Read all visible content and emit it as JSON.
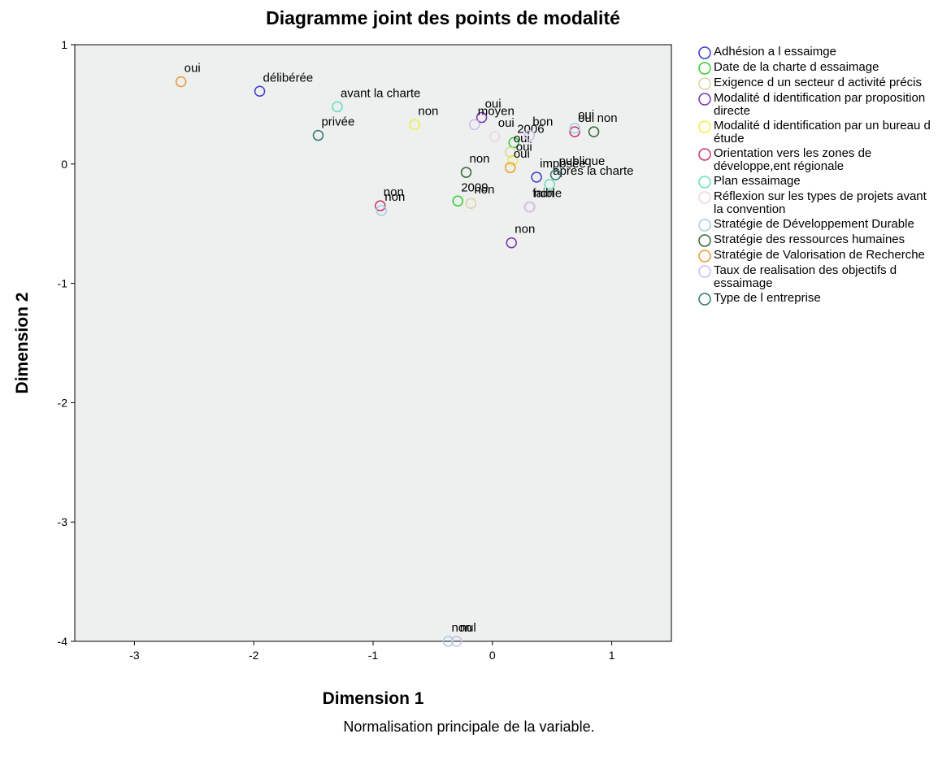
{
  "chart_data": {
    "type": "scatter",
    "title": "Diagramme joint des points de modalité",
    "xlabel": "Dimension 1",
    "ylabel": "Dimension 2",
    "note": "Normalisation principale de la variable.",
    "xlim": [
      -3.5,
      1.5
    ],
    "ylim": [
      -4,
      1
    ],
    "xticks": [
      -3,
      -2,
      -1,
      0,
      1
    ],
    "yticks": [
      1,
      0,
      -1,
      -2,
      -3,
      -4
    ],
    "series": [
      {
        "name": "Adhésion a l essaimge",
        "color": "#3a3acc",
        "x": [
          -1.95,
          0.37
        ],
        "values": [
          0.61,
          -0.11
        ],
        "labels": [
          "délibérée",
          "imposée"
        ]
      },
      {
        "name": "Date de la charte d essaimage",
        "color": "#33cc33",
        "x": [
          0.18,
          -0.29
        ],
        "values": [
          0.18,
          -0.31
        ],
        "labels": [
          "2006",
          "2009"
        ]
      },
      {
        "name": "Exigence d un secteur d activité précis",
        "color": "#ddd4a0",
        "x": [
          -0.18,
          0.15
        ],
        "values": [
          -0.33,
          0.1
        ],
        "labels": [
          "non",
          "oui"
        ]
      },
      {
        "name": "Modalité d identification par proposition directe",
        "color": "#7733aa",
        "x": [
          -0.09,
          0.16
        ],
        "values": [
          0.39,
          -0.66
        ],
        "labels": [
          "oui",
          "non"
        ]
      },
      {
        "name": "Modalité d identification par un bureau d étude",
        "color": "#eeee44",
        "x": [
          -0.65,
          0.17
        ],
        "values": [
          0.33,
          0.03
        ],
        "labels": [
          "non",
          "oui"
        ]
      },
      {
        "name": "Orientation vers les zones de développe,ent régionale",
        "color": "#cc3366",
        "x": [
          0.69,
          -0.94
        ],
        "values": [
          0.27,
          -0.35
        ],
        "labels": [
          "oui",
          "non"
        ]
      },
      {
        "name": "Plan essaimage",
        "color": "#66ddbb",
        "x": [
          -1.3,
          0.48
        ],
        "values": [
          0.48,
          -0.17
        ],
        "labels": [
          "avant la charte",
          "après la charte"
        ]
      },
      {
        "name": "Réflexion sur les types de projets avant la convention",
        "color": "#f0d4dc",
        "x": [
          0.02,
          0.32
        ],
        "values": [
          0.23,
          -0.36
        ],
        "labels": [
          "oui",
          "non"
        ]
      },
      {
        "name": "Stratégie de Développement Durable",
        "color": "#a0d0e0",
        "x": [
          -0.93,
          0.69,
          -0.37
        ],
        "values": [
          -0.39,
          0.3,
          -4.0
        ],
        "labels": [
          "non",
          "oui",
          "non"
        ]
      },
      {
        "name": "Stratégie des ressources humaines",
        "color": "#336633",
        "x": [
          0.85,
          -0.22
        ],
        "values": [
          0.27,
          -0.07
        ],
        "labels": [
          "non",
          "non"
        ]
      },
      {
        "name": "Stratégie de Valorisation de Recherche",
        "color": "#ee9933",
        "x": [
          -2.61,
          0.15
        ],
        "values": [
          0.69,
          -0.03
        ],
        "labels": [
          "oui",
          "oui"
        ]
      },
      {
        "name": "Taux de realisation des objectifs d essaimage",
        "color": "#ccbbee",
        "x": [
          -0.15,
          0.31,
          -0.3,
          0.31
        ],
        "values": [
          0.33,
          0.24,
          -4.0,
          -0.36
        ],
        "labels": [
          "moyen",
          "bon",
          "nul",
          "faible"
        ]
      },
      {
        "name": "Type de l entreprise",
        "color": "#337777",
        "x": [
          -1.46,
          0.53
        ],
        "values": [
          0.24,
          -0.09
        ],
        "labels": [
          "privée",
          "publique"
        ]
      }
    ]
  }
}
